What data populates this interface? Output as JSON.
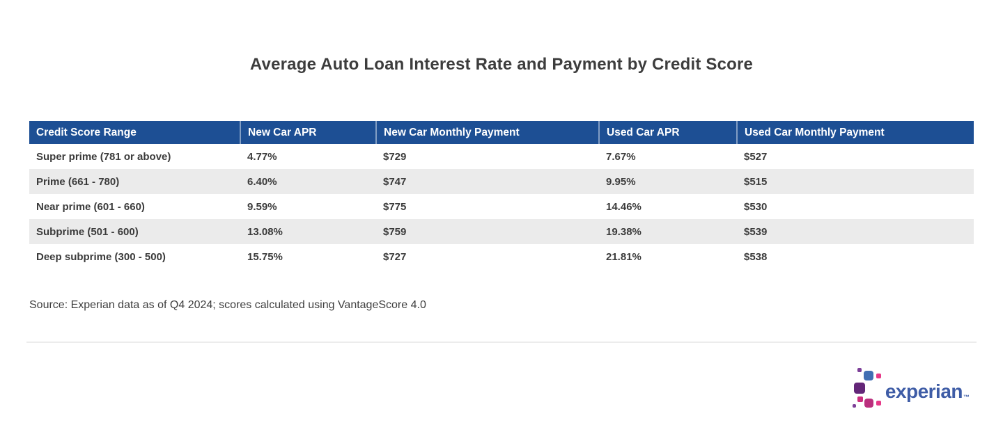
{
  "page": {
    "title": "Average Auto Loan Interest Rate and Payment by Credit Score",
    "source_note": "Source: Experian data as of Q4 2024; scores calculated using VantageScore 4.0"
  },
  "chart_data": {
    "type": "table",
    "title": "Average Auto Loan Interest Rate and Payment by Credit Score",
    "columns": [
      "Credit Score Range",
      "New Car APR",
      "New Car Monthly Payment",
      "Used Car APR",
      "Used Car Monthly Payment"
    ],
    "rows": [
      [
        "Super prime (781 or above)",
        "4.77%",
        "$729",
        "7.67%",
        "$527"
      ],
      [
        "Prime (661 - 780)",
        "6.40%",
        "$747",
        "9.95%",
        "$515"
      ],
      [
        "Near prime (601 - 660)",
        "9.59%",
        "$775",
        "14.46%",
        "$530"
      ],
      [
        "Subprime (501 - 600)",
        "13.08%",
        "$759",
        "19.38%",
        "$539"
      ],
      [
        "Deep subprime (300 - 500)",
        "15.75%",
        "$727",
        "21.81%",
        "$538"
      ]
    ],
    "source": "Source: Experian data as of Q4 2024; scores calculated using VantageScore 4.0",
    "layout_hints": {
      "header_bg": "#1d4f94",
      "header_text_color": "#ffffff",
      "alt_row_bg": "#ebebeb",
      "grid": "none"
    }
  },
  "branding": {
    "logo_text": "experian",
    "trademark": "™",
    "logo_colors": {
      "wordmark_blue": "#3e5ca6",
      "dot_blue": "#406eb3",
      "dot_purple": "#632678",
      "dot_magenta": "#ba2f7d",
      "dot_pink": "#e63888"
    }
  }
}
